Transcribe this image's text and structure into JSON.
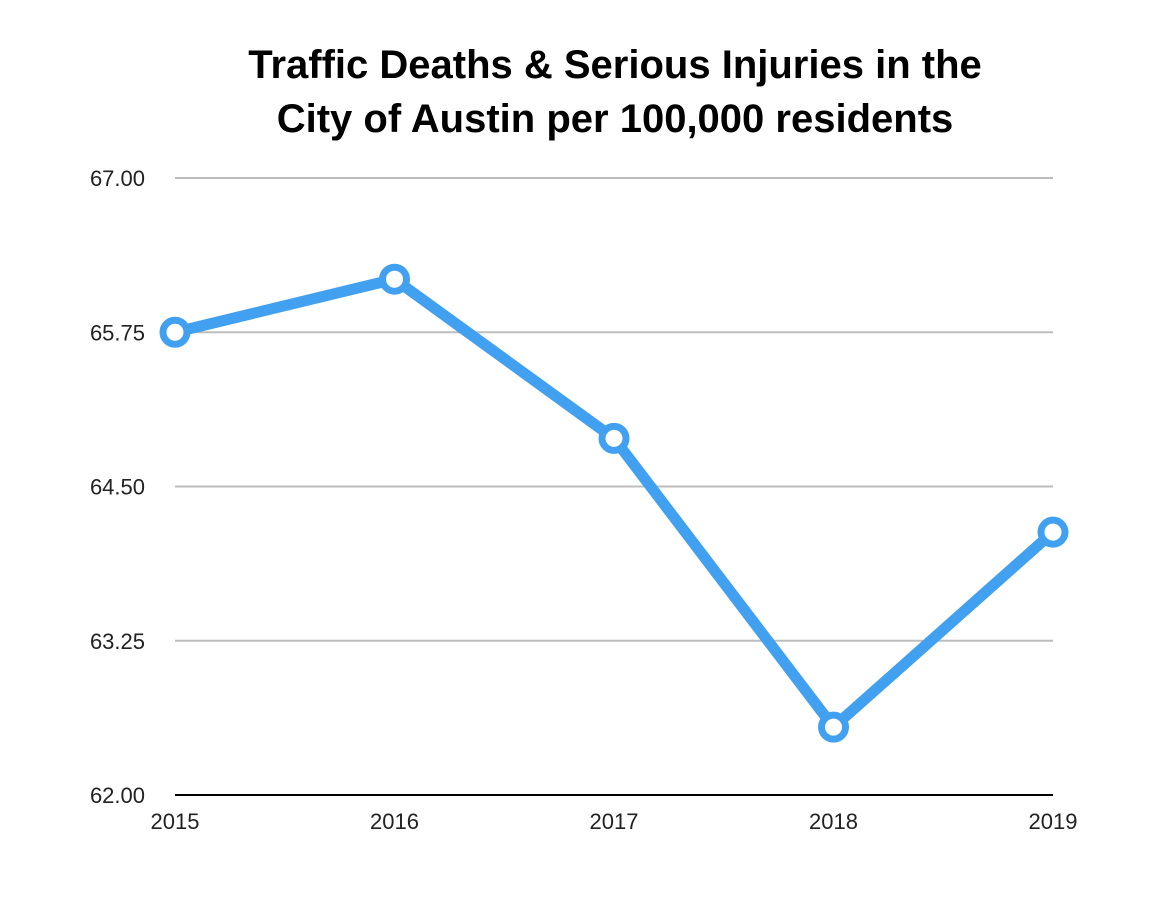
{
  "chart_data": {
    "type": "line",
    "title_lines": [
      "Traffic Deaths & Serious Injuries in the",
      "City of Austin per 100,000 residents"
    ],
    "categories": [
      "2015",
      "2016",
      "2017",
      "2018",
      "2019"
    ],
    "series": [
      {
        "values": [
          65.75,
          66.18,
          64.89,
          62.55,
          64.13
        ]
      }
    ],
    "y_ticks": [
      "67.00",
      "65.75",
      "64.50",
      "63.25",
      "62.00"
    ],
    "ylim": [
      62.0,
      67.0
    ],
    "grid": true,
    "legend": "none",
    "xlabel": "",
    "ylabel": "",
    "line_color": "#42A0F0",
    "grid_color": "#BDBDBD",
    "axis_color": "#000000"
  }
}
